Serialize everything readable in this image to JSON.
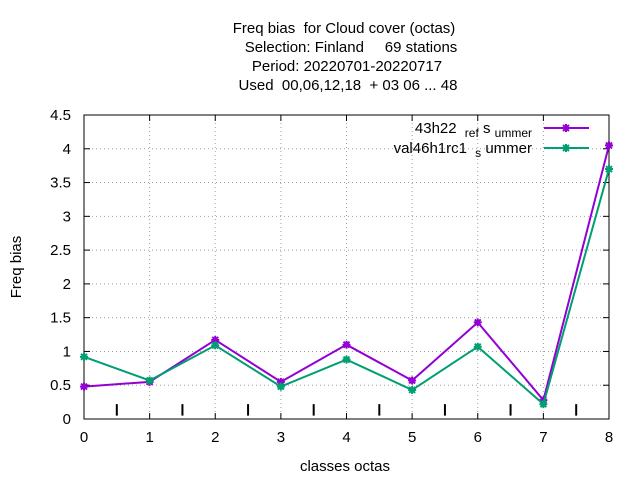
{
  "chart_data": {
    "type": "line",
    "title_lines": [
      "Freq bias  for Cloud cover (octas)",
      "Selection: Finland     69 stations",
      "Period: 20220701-20220717",
      "Used  00,06,12,18  + 03 06 ... 48"
    ],
    "xlabel": "classes octas",
    "ylabel": "Freq bias",
    "xlim": [
      0,
      8
    ],
    "ylim": [
      0,
      4.5
    ],
    "x_ticks": [
      "0",
      "1",
      "2",
      "3",
      "4",
      "5",
      "6",
      "7",
      "8"
    ],
    "y_ticks": [
      "0",
      "0.5",
      "1",
      "1.5",
      "2",
      "2.5",
      "3",
      "3.5",
      "4",
      "4.5"
    ],
    "grid": true,
    "legend_position": "top-right",
    "x": [
      0,
      1,
      2,
      3,
      4,
      5,
      6,
      7,
      8
    ],
    "series": [
      {
        "name_parts": [
          "43h22",
          "ref",
          "s",
          "ummer"
        ],
        "color": "#9400d3",
        "values": [
          0.48,
          0.55,
          1.17,
          0.55,
          1.1,
          0.57,
          1.43,
          0.28,
          4.05
        ]
      },
      {
        "name_parts": [
          "val46h1rc1",
          "s",
          "ummer"
        ],
        "color": "#009e73",
        "values": [
          0.92,
          0.57,
          1.09,
          0.48,
          0.88,
          0.43,
          1.07,
          0.22,
          3.7
        ]
      }
    ],
    "marker_x": [
      0.5,
      1.5,
      2.5,
      3.5,
      4.5,
      5.5,
      6.5,
      7.5
    ]
  }
}
